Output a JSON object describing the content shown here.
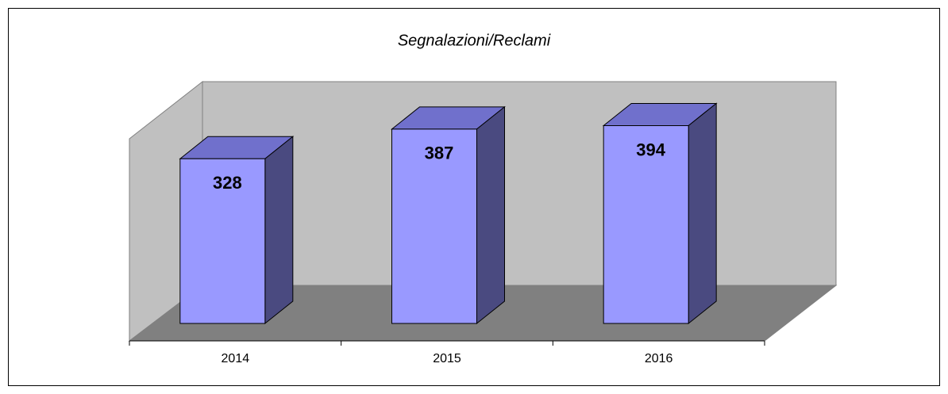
{
  "chart_data": {
    "type": "bar",
    "title": "Segnalazioni/Reclami",
    "categories": [
      "2014",
      "2015",
      "2016"
    ],
    "values": [
      328,
      387,
      394
    ],
    "color": "#9999ff",
    "ylim": [
      0,
      450
    ]
  }
}
